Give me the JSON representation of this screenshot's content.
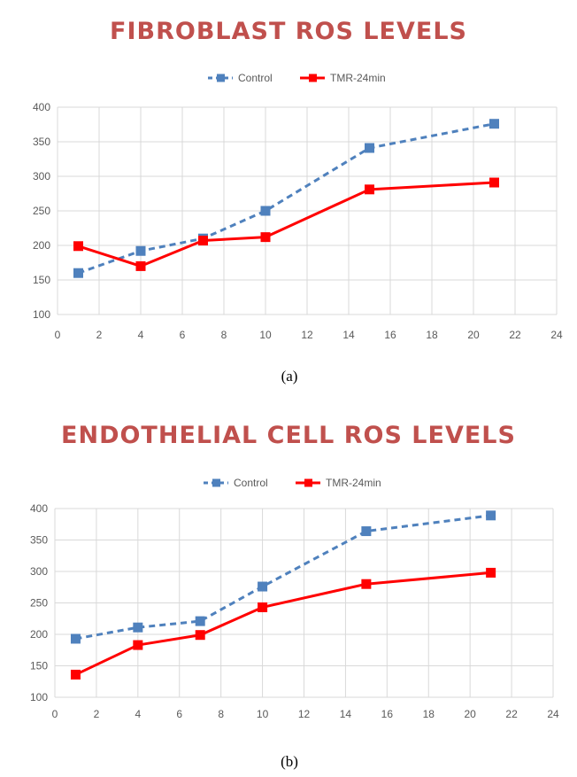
{
  "chart_data": [
    {
      "type": "line",
      "title": "FIBROBLAST ROS LEVELS",
      "caption": "(a)",
      "xlabel": "",
      "ylabel": "",
      "xlim": [
        0,
        24
      ],
      "ylim": [
        100,
        400
      ],
      "xticks": [
        0,
        2,
        4,
        6,
        8,
        10,
        12,
        14,
        16,
        18,
        20,
        22,
        24
      ],
      "yticks": [
        100,
        150,
        200,
        250,
        300,
        350,
        400
      ],
      "grid": true,
      "legend_position": "top",
      "x": [
        1,
        4,
        7,
        10,
        15,
        21
      ],
      "series": [
        {
          "name": "Control",
          "color": "#4f81bd",
          "style": "dashed",
          "marker": "square",
          "values": [
            160,
            192,
            210,
            250,
            341,
            376
          ]
        },
        {
          "name": "TMR-24min",
          "color": "#ff0000",
          "style": "solid",
          "marker": "square",
          "values": [
            199,
            170,
            207,
            212,
            281,
            291
          ]
        }
      ]
    },
    {
      "type": "line",
      "title": "ENDOTHELIAL CELL ROS LEVELS",
      "caption": "(b)",
      "xlabel": "",
      "ylabel": "",
      "xlim": [
        0,
        24
      ],
      "ylim": [
        100,
        400
      ],
      "xticks": [
        0,
        2,
        4,
        6,
        8,
        10,
        12,
        14,
        16,
        18,
        20,
        22,
        24
      ],
      "yticks": [
        100,
        150,
        200,
        250,
        300,
        350,
        400
      ],
      "grid": true,
      "legend_position": "top",
      "x": [
        1,
        4,
        7,
        10,
        15,
        21
      ],
      "series": [
        {
          "name": "Control",
          "color": "#4f81bd",
          "style": "dashed",
          "marker": "square",
          "values": [
            193,
            211,
            221,
            276,
            364,
            389
          ]
        },
        {
          "name": "TMR-24min",
          "color": "#ff0000",
          "style": "solid",
          "marker": "square",
          "values": [
            136,
            183,
            199,
            243,
            280,
            298
          ]
        }
      ]
    }
  ]
}
